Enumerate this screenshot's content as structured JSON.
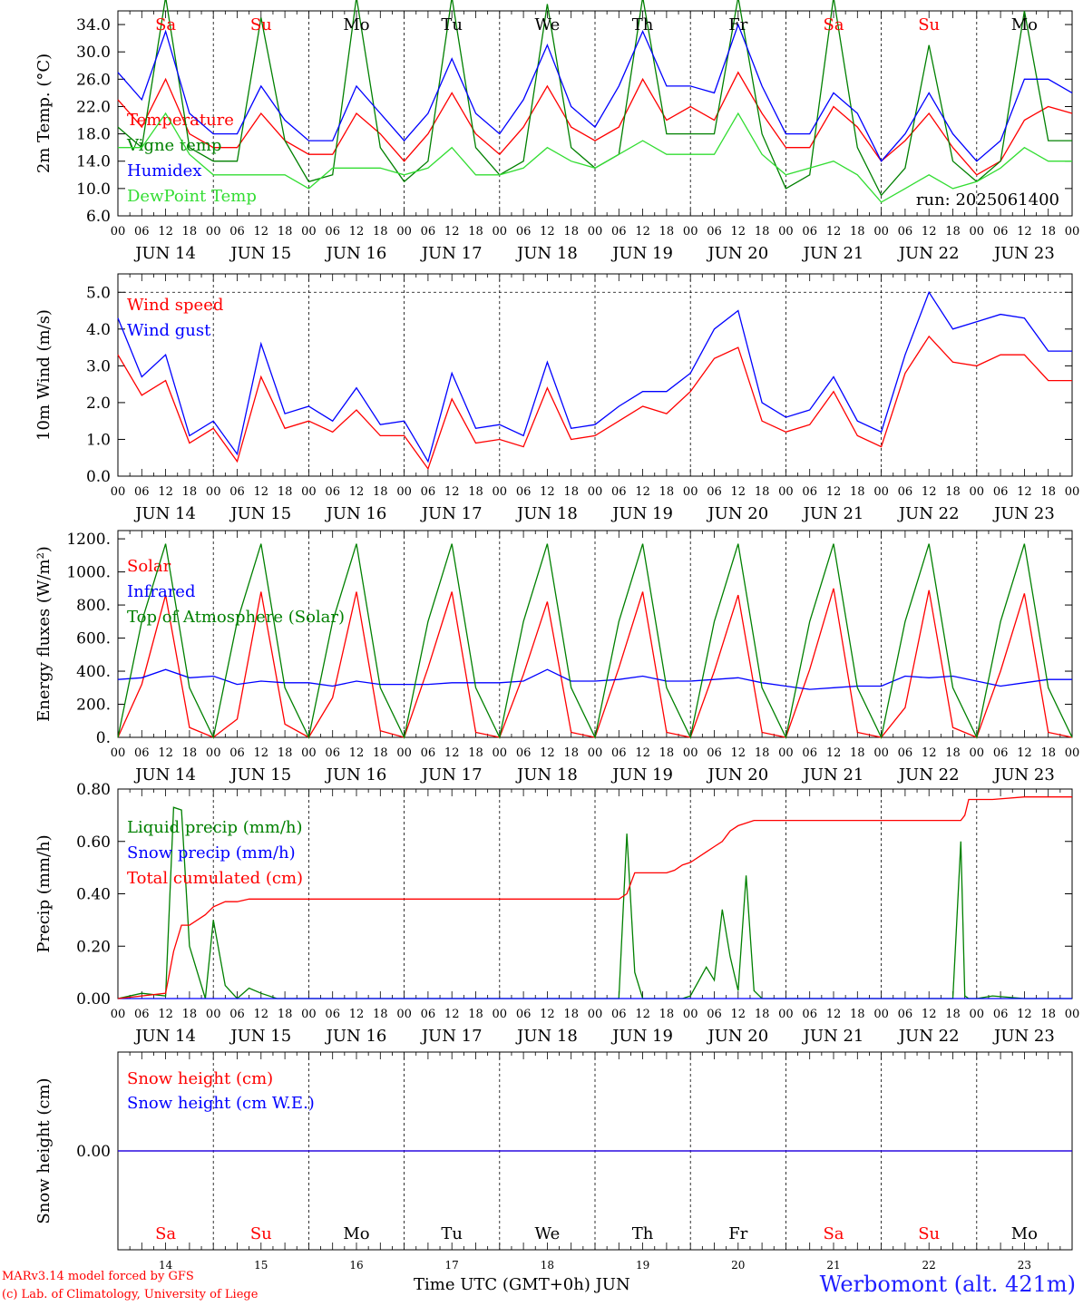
{
  "run_label": "run: 2025061400",
  "hour_ticks": [
    "00",
    "06",
    "12",
    "18"
  ],
  "dates": [
    "JUN 14",
    "JUN 15",
    "JUN 16",
    "JUN 17",
    "JUN 18",
    "JUN 19",
    "JUN 20",
    "JUN 21",
    "JUN 22",
    "JUN 23"
  ],
  "day_names": [
    "Sa",
    "Su",
    "Mo",
    "Tu",
    "We",
    "Th",
    "Fr",
    "Sa",
    "Su",
    "Mo"
  ],
  "weekend_flags": [
    true,
    true,
    false,
    false,
    false,
    false,
    false,
    true,
    true,
    false
  ],
  "day_numbers": [
    "14",
    "15",
    "16",
    "17",
    "18",
    "19",
    "20",
    "21",
    "22",
    "23"
  ],
  "footer": {
    "credit_line1": "MARv3.14 model forced by GFS",
    "credit_line2": "(c) Lab. of Climatology, University of Liege",
    "xaxis_title": "Time UTC (GMT+0h) JUN",
    "station": "Werbomont (alt. 421m)"
  },
  "colors": {
    "red": "#ff0000",
    "green": "#008000",
    "blue": "#0000ff",
    "lightgreen": "#33dd33",
    "weekend": "#ff0000",
    "weekday": "#000000"
  },
  "chart_data": [
    {
      "type": "line",
      "ylabel": "2m Temp. (°C)",
      "ylim": [
        6,
        36
      ],
      "yticks": [
        "6.0",
        "10.0",
        "14.0",
        "18.0",
        "22.0",
        "26.0",
        "30.0",
        "34.0"
      ],
      "x_hours": [
        0,
        6,
        12,
        18,
        24,
        30,
        36,
        42,
        48,
        54,
        60,
        66,
        72,
        78,
        84,
        90,
        96,
        102,
        108,
        114,
        120,
        126,
        132,
        138,
        144,
        150,
        156,
        162,
        168,
        174,
        180,
        186,
        192,
        198,
        204,
        210,
        216,
        222,
        228,
        234,
        240
      ],
      "series": [
        {
          "name": "Temperature",
          "color": "red",
          "values": [
            23,
            19,
            26,
            18,
            16,
            16,
            21,
            17,
            15,
            15,
            21,
            18,
            14,
            18,
            24,
            18,
            15,
            19,
            25,
            19,
            17,
            19,
            26,
            20,
            22,
            20,
            27,
            21,
            16,
            16,
            22,
            19,
            14,
            17,
            21,
            16,
            12,
            14,
            20,
            22,
            21
          ]
        },
        {
          "name": "Vigne temp",
          "color": "green",
          "values": [
            19,
            16,
            38,
            16,
            14,
            14,
            35,
            17,
            11,
            12,
            38,
            16,
            11,
            14,
            38,
            16,
            12,
            14,
            37,
            16,
            13,
            15,
            38,
            18,
            18,
            18,
            38,
            18,
            10,
            12,
            38,
            16,
            9,
            13,
            31,
            14,
            11,
            14,
            36,
            17,
            17
          ]
        },
        {
          "name": "Humidex",
          "color": "blue",
          "values": [
            27,
            23,
            33,
            21,
            18,
            18,
            25,
            20,
            17,
            17,
            25,
            21,
            17,
            21,
            29,
            21,
            18,
            23,
            31,
            22,
            19,
            25,
            33,
            25,
            25,
            24,
            34,
            25,
            18,
            18,
            24,
            21,
            14,
            18,
            24,
            18,
            14,
            17,
            26,
            26,
            24
          ]
        },
        {
          "name": "DewPoint Temp",
          "color": "lightgreen",
          "values": [
            16,
            16,
            21,
            15,
            12,
            12,
            12,
            12,
            10,
            13,
            13,
            13,
            12,
            13,
            16,
            12,
            12,
            13,
            16,
            14,
            13,
            15,
            17,
            15,
            15,
            15,
            21,
            15,
            12,
            13,
            14,
            12,
            8,
            10,
            12,
            10,
            11,
            13,
            16,
            14,
            14
          ]
        }
      ]
    },
    {
      "type": "line",
      "ylabel": "10m Wind (m/s)",
      "ylim": [
        0,
        5.5
      ],
      "yticks": [
        "0.0",
        "1.0",
        "2.0",
        "3.0",
        "4.0",
        "5.0"
      ],
      "x_hours": [
        0,
        6,
        12,
        18,
        24,
        30,
        36,
        42,
        48,
        54,
        60,
        66,
        72,
        78,
        84,
        90,
        96,
        102,
        108,
        114,
        120,
        126,
        132,
        138,
        144,
        150,
        156,
        162,
        168,
        174,
        180,
        186,
        192,
        198,
        204,
        210,
        216,
        222,
        228,
        234,
        240
      ],
      "series": [
        {
          "name": "Wind speed",
          "color": "red",
          "values": [
            3.3,
            2.2,
            2.6,
            0.9,
            1.3,
            0.4,
            2.7,
            1.3,
            1.5,
            1.2,
            1.8,
            1.1,
            1.1,
            0.2,
            2.1,
            0.9,
            1.0,
            0.8,
            2.4,
            1.0,
            1.1,
            1.5,
            1.9,
            1.7,
            2.3,
            3.2,
            3.5,
            1.5,
            1.2,
            1.4,
            2.3,
            1.1,
            0.8,
            2.8,
            3.8,
            3.1,
            3.0,
            3.3,
            3.3,
            2.6,
            2.6
          ]
        },
        {
          "name": "Wind gust",
          "color": "blue",
          "values": [
            4.3,
            2.7,
            3.3,
            1.1,
            1.5,
            0.6,
            3.6,
            1.7,
            1.9,
            1.5,
            2.4,
            1.4,
            1.5,
            0.4,
            2.8,
            1.3,
            1.4,
            1.1,
            3.1,
            1.3,
            1.4,
            1.9,
            2.3,
            2.3,
            2.8,
            4.0,
            4.5,
            2.0,
            1.6,
            1.8,
            2.7,
            1.5,
            1.2,
            3.3,
            5.0,
            4.0,
            4.2,
            4.4,
            4.3,
            3.4,
            3.4
          ]
        }
      ]
    },
    {
      "type": "line",
      "ylabel": "Energy fluxes (W/m²)",
      "ylim": [
        0,
        1250
      ],
      "yticks": [
        "0.",
        "200.",
        "400.",
        "600.",
        "800.",
        "1000.",
        "1200."
      ],
      "x_hours": [
        0,
        6,
        12,
        18,
        24,
        30,
        36,
        42,
        48,
        54,
        60,
        66,
        72,
        78,
        84,
        90,
        96,
        102,
        108,
        114,
        120,
        126,
        132,
        138,
        144,
        150,
        156,
        162,
        168,
        174,
        180,
        186,
        192,
        198,
        204,
        210,
        216,
        222,
        228,
        234,
        240
      ],
      "series": [
        {
          "name": "Solar",
          "color": "red",
          "values": [
            0,
            320,
            860,
            60,
            0,
            110,
            880,
            80,
            0,
            240,
            880,
            40,
            0,
            420,
            880,
            30,
            0,
            380,
            820,
            30,
            0,
            420,
            880,
            30,
            0,
            400,
            860,
            30,
            0,
            410,
            900,
            30,
            0,
            180,
            890,
            60,
            0,
            400,
            870,
            30,
            0
          ]
        },
        {
          "name": "Infrared",
          "color": "blue",
          "values": [
            350,
            360,
            410,
            360,
            370,
            320,
            340,
            330,
            330,
            310,
            340,
            320,
            320,
            320,
            330,
            330,
            330,
            340,
            410,
            340,
            340,
            350,
            370,
            340,
            340,
            350,
            360,
            330,
            310,
            290,
            300,
            310,
            310,
            370,
            360,
            370,
            340,
            310,
            330,
            350,
            350
          ]
        },
        {
          "name": "Top of Atmosphere (Solar)",
          "color": "green",
          "values": [
            0,
            700,
            1170,
            300,
            0,
            700,
            1170,
            300,
            0,
            700,
            1170,
            300,
            0,
            700,
            1170,
            300,
            0,
            700,
            1170,
            300,
            0,
            700,
            1170,
            300,
            0,
            700,
            1170,
            300,
            0,
            700,
            1170,
            300,
            0,
            700,
            1170,
            300,
            0,
            700,
            1170,
            300,
            0
          ]
        }
      ]
    },
    {
      "type": "line",
      "ylabel": "Precip (mm/h)",
      "ylim": [
        0,
        0.8
      ],
      "yticks": [
        "0.00",
        "0.20",
        "0.40",
        "0.60",
        "0.80"
      ],
      "x_hours": [
        0,
        6,
        12,
        14,
        16,
        18,
        22,
        24,
        27,
        30,
        33,
        36,
        40,
        48,
        96,
        120,
        126,
        128,
        130,
        132,
        134,
        136,
        138,
        140,
        142,
        144,
        148,
        150,
        152,
        154,
        156,
        158,
        160,
        162,
        164,
        168,
        192,
        210,
        212,
        213,
        214,
        215,
        216,
        220,
        228,
        240
      ],
      "series": [
        {
          "name": "Liquid precip (mm/h)",
          "color": "green",
          "values": [
            0,
            0.02,
            0.01,
            0.73,
            0.72,
            0.2,
            0,
            0.3,
            0.05,
            0,
            0.04,
            0.02,
            0,
            0,
            0,
            0,
            0,
            0.63,
            0.1,
            0,
            0,
            0,
            0,
            0,
            0,
            0.01,
            0.12,
            0.07,
            0.34,
            0.16,
            0.03,
            0.47,
            0.03,
            0,
            0,
            0,
            0,
            0,
            0.6,
            0.01,
            0,
            0,
            0,
            0.01,
            0,
            0
          ]
        },
        {
          "name": "Snow precip (mm/h)",
          "color": "blue",
          "values": [
            0,
            0,
            0,
            0,
            0,
            0,
            0,
            0,
            0,
            0,
            0,
            0,
            0,
            0,
            0,
            0,
            0,
            0,
            0,
            0,
            0,
            0,
            0,
            0,
            0,
            0,
            0,
            0,
            0,
            0,
            0,
            0,
            0,
            0,
            0,
            0,
            0,
            0,
            0,
            0,
            0,
            0,
            0,
            0,
            0,
            0
          ]
        },
        {
          "name": "Total cumulated (cm)",
          "color": "red",
          "values": [
            0,
            0.01,
            0.02,
            0.18,
            0.28,
            0.28,
            0.32,
            0.35,
            0.37,
            0.37,
            0.38,
            0.38,
            0.38,
            0.38,
            0.38,
            0.38,
            0.38,
            0.4,
            0.48,
            0.48,
            0.48,
            0.48,
            0.48,
            0.49,
            0.51,
            0.52,
            0.56,
            0.58,
            0.6,
            0.64,
            0.66,
            0.67,
            0.68,
            0.68,
            0.68,
            0.68,
            0.68,
            0.68,
            0.68,
            0.7,
            0.76,
            0.76,
            0.76,
            0.76,
            0.77,
            0.77
          ]
        }
      ]
    },
    {
      "type": "line",
      "ylabel": "Snow height (cm)",
      "ylim": [
        -1,
        1
      ],
      "yticks": [
        "0.00"
      ],
      "x_hours": [
        0,
        240
      ],
      "series": [
        {
          "name": "Snow height (cm)",
          "color": "red",
          "values": [
            0,
            0
          ]
        },
        {
          "name": "Snow height (cm W.E.)",
          "color": "blue",
          "values": [
            0,
            0
          ]
        }
      ]
    }
  ]
}
